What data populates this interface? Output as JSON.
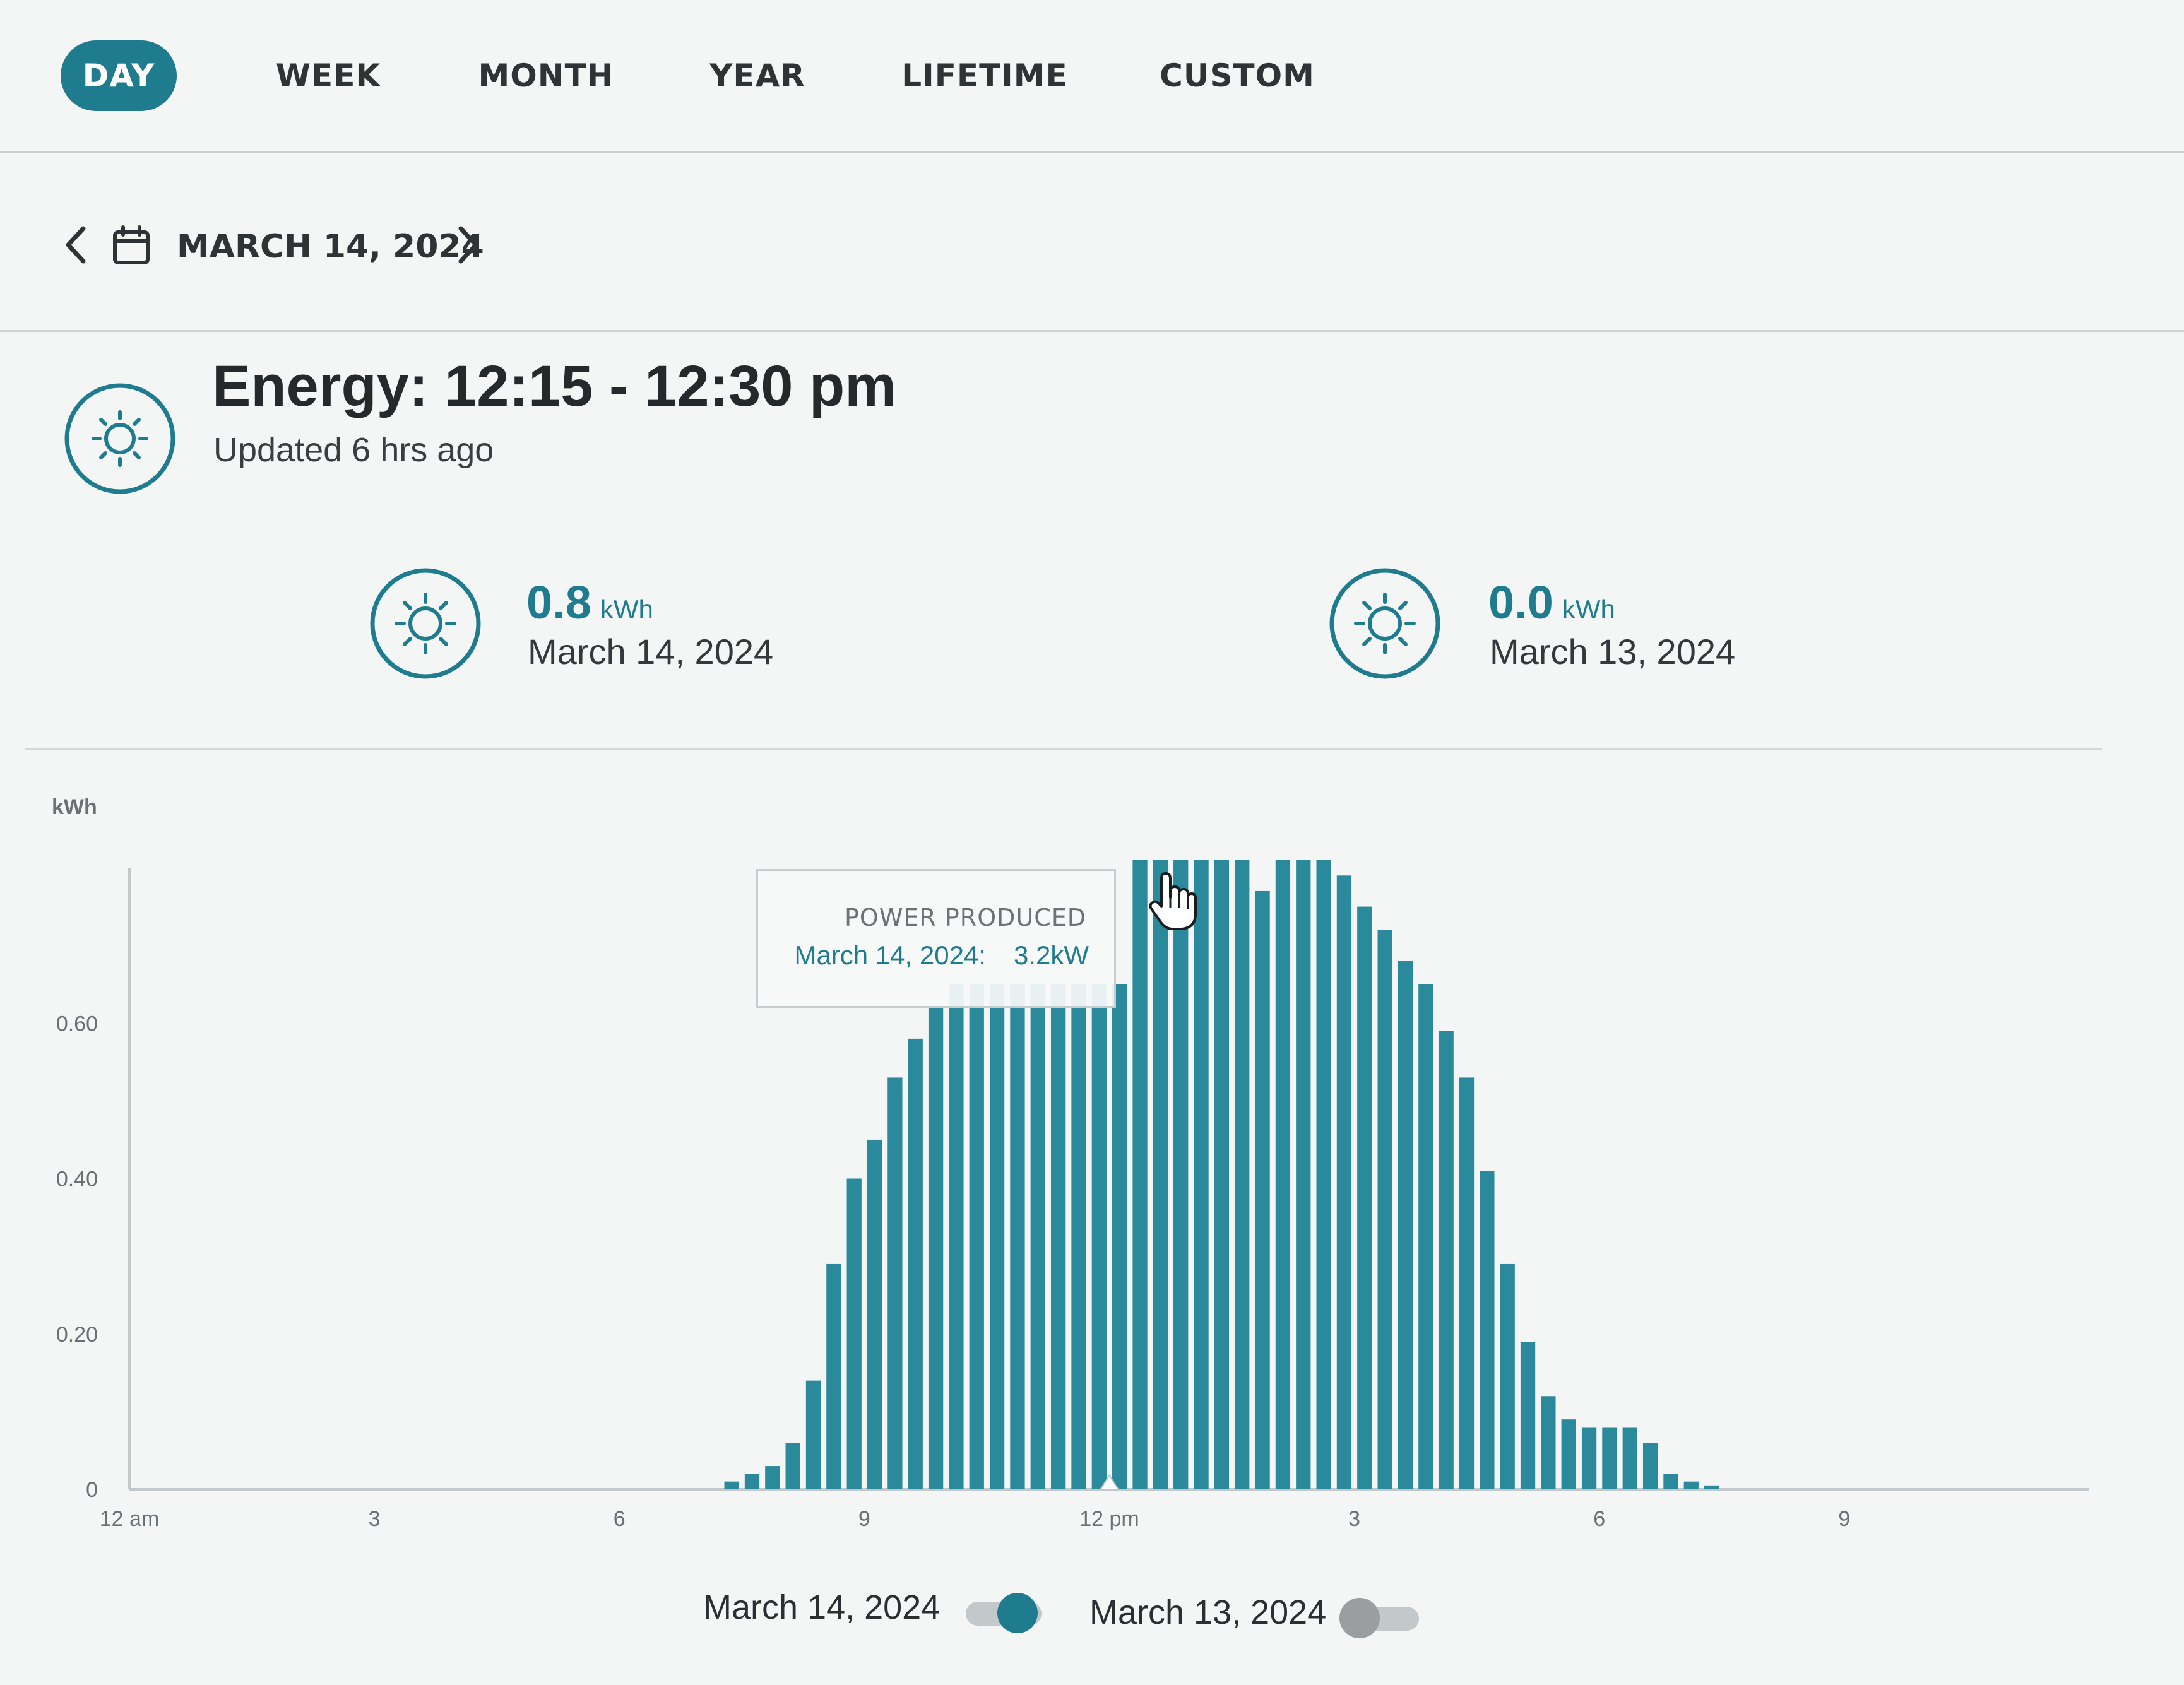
{
  "tabs": [
    {
      "label": "DAY",
      "active": true
    },
    {
      "label": "WEEK",
      "active": false
    },
    {
      "label": "MONTH",
      "active": false
    },
    {
      "label": "YEAR",
      "active": false
    },
    {
      "label": "LIFETIME",
      "active": false
    },
    {
      "label": "CUSTOM",
      "active": false
    }
  ],
  "date_nav": {
    "label": "MARCH 14, 2024"
  },
  "header": {
    "title": "Energy: 12:15 - 12:30 pm",
    "subtitle": "Updated 6 hrs ago",
    "icon": "sun-icon"
  },
  "stats": [
    {
      "value": "0.8",
      "unit": "kWh",
      "date": "March 14, 2024",
      "icon": "sun-icon"
    },
    {
      "value": "0.0",
      "unit": "kWh",
      "date": "March 13, 2024",
      "icon": "sun-icon"
    }
  ],
  "tooltip": {
    "title": "POWER PRODUCED",
    "series_label": "March 14, 2024:",
    "value": "3.2kW"
  },
  "legend": [
    {
      "label": "March 14, 2024",
      "enabled": true
    },
    {
      "label": "March 13, 2024",
      "enabled": false
    }
  ],
  "colors": {
    "accent": "#1f7c8e",
    "bar": "#2a8a9c",
    "toggle_off": "#9a9ea1"
  },
  "chart_data": {
    "type": "bar",
    "ylabel": "kWh",
    "y_ticks": [
      "0",
      "0.20",
      "0.40",
      "0.60"
    ],
    "ylim": [
      0,
      0.8
    ],
    "x_ticks": [
      {
        "label": "12 am",
        "hour": 0
      },
      {
        "label": "3",
        "hour": 3
      },
      {
        "label": "6",
        "hour": 6
      },
      {
        "label": "9",
        "hour": 9
      },
      {
        "label": "12 pm",
        "hour": 12
      },
      {
        "label": "3",
        "hour": 15
      },
      {
        "label": "6",
        "hour": 18
      },
      {
        "label": "9",
        "hour": 21
      }
    ],
    "xlim": [
      0,
      24
    ],
    "interval_minutes": 15,
    "series": [
      {
        "name": "March 14, 2024",
        "start_hour": 7.25,
        "values": [
          0.01,
          0.02,
          0.03,
          0.06,
          0.14,
          0.29,
          0.4,
          0.45,
          0.53,
          0.58,
          0.62,
          0.65,
          0.65,
          0.65,
          0.65,
          0.65,
          0.65,
          0.65,
          0.65,
          0.65,
          0.81,
          0.81,
          0.81,
          0.81,
          0.81,
          0.81,
          0.77,
          0.81,
          0.81,
          0.81,
          0.79,
          0.75,
          0.72,
          0.68,
          0.65,
          0.59,
          0.53,
          0.41,
          0.29,
          0.19,
          0.12,
          0.09,
          0.08,
          0.08,
          0.08,
          0.06,
          0.02,
          0.01,
          0.005
        ]
      }
    ]
  }
}
